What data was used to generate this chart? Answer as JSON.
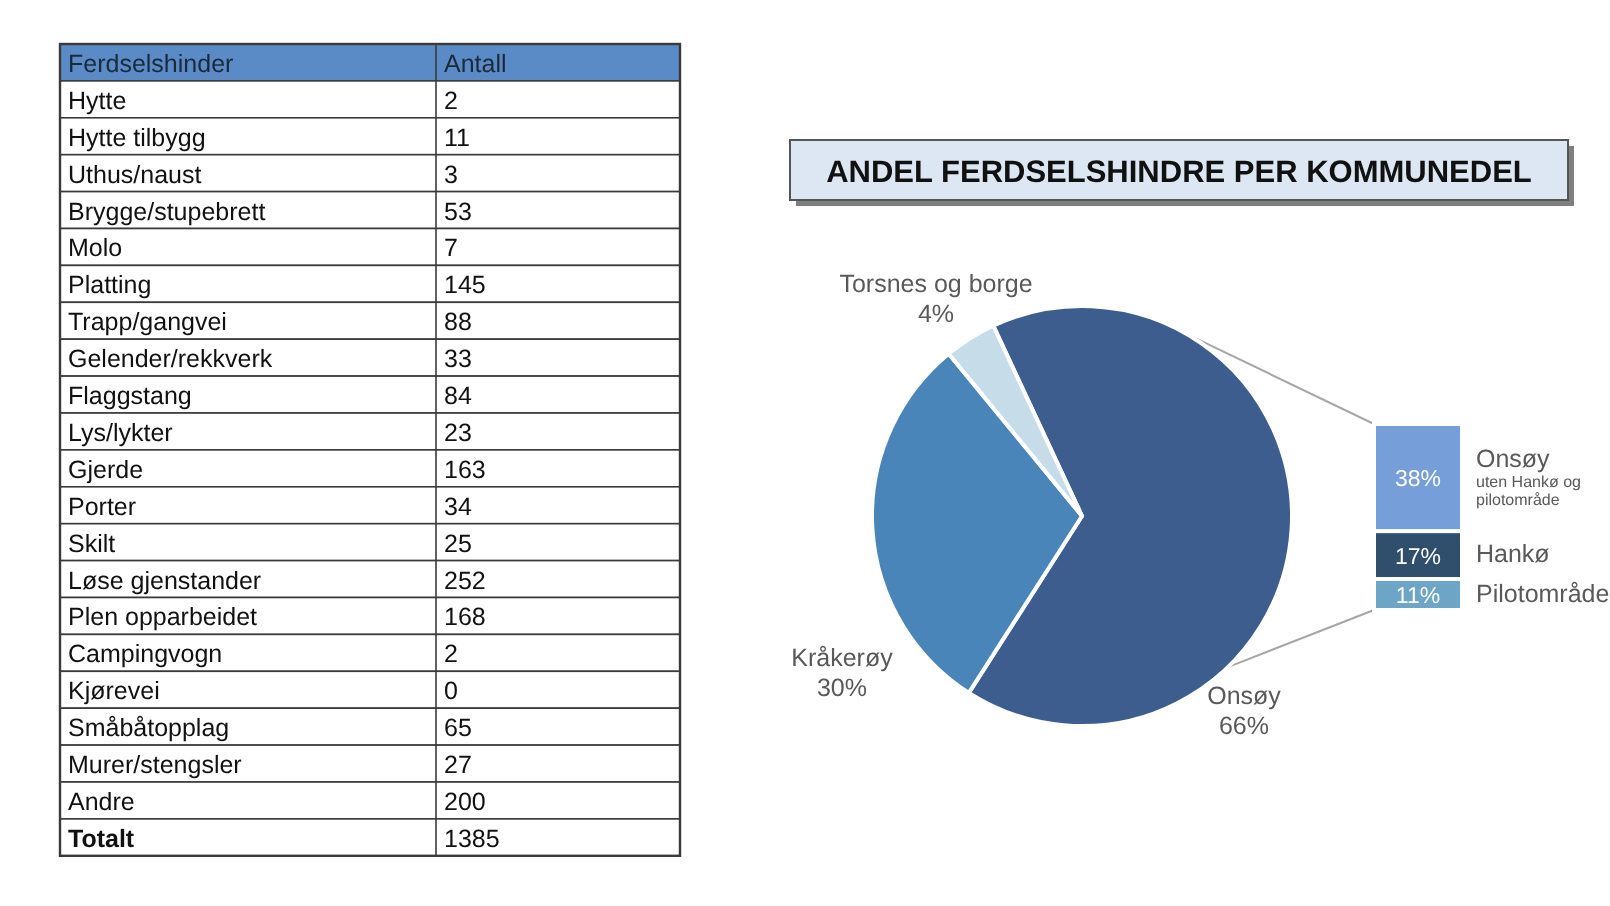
{
  "chart_data": [
    {
      "type": "other",
      "xlabel": "Ferdselshinder",
      "ylabel": "Antall",
      "categories": [
        "Hytte",
        "Hytte tilbygg",
        "Uthus/naust",
        "Brygge/stupebrett",
        "Molo",
        "Platting",
        "Trapp/gangvei",
        "Gelender/rekkverk",
        "Flaggstang",
        "Lys/lykter",
        "Gjerde",
        "Porter",
        "Skilt",
        "Løse gjenstander",
        "Plen opparbeidet",
        "Campingvogn",
        "Kjørevei",
        "Småbåtopplag",
        "Murer/stengsler",
        "Andre"
      ],
      "values": [
        2,
        11,
        3,
        53,
        7,
        145,
        88,
        33,
        84,
        23,
        163,
        34,
        25,
        252,
        168,
        2,
        0,
        65,
        27,
        200
      ],
      "data_labels": true,
      "annotations": [
        "Totalt"
      ],
      "totals": [
        "1385"
      ]
    },
    {
      "type": "pie",
      "title": "ANDEL FERDSELSHINDRE PER KOMMUNEDEL",
      "categories": [
        "Onsøy",
        "Kråkerøy",
        "Torsnes og borge"
      ],
      "values": [
        66,
        30,
        4
      ],
      "colors": [
        "#3d5d8f",
        "#4a85b9",
        "#c6dce9"
      ],
      "value_labels": [
        "66%",
        "30%",
        "4%"
      ]
    },
    {
      "type": "bar",
      "stacked": true,
      "categories": [
        null
      ],
      "series": [
        {
          "name": "Pilotområde",
          "color": "#6ca5c6",
          "values": [
            11
          ],
          "value_labels": [
            "11%"
          ]
        },
        {
          "name": "Hankø",
          "color": "#2f4f6c",
          "values": [
            17
          ],
          "value_labels": [
            "17%"
          ]
        },
        {
          "name": "Onsøy",
          "color": "#769fd9",
          "values": [
            38
          ],
          "value_labels": [
            "38%"
          ]
        }
      ],
      "annotations": [
        "uten Hankø og pilotområde"
      ]
    }
  ]
}
